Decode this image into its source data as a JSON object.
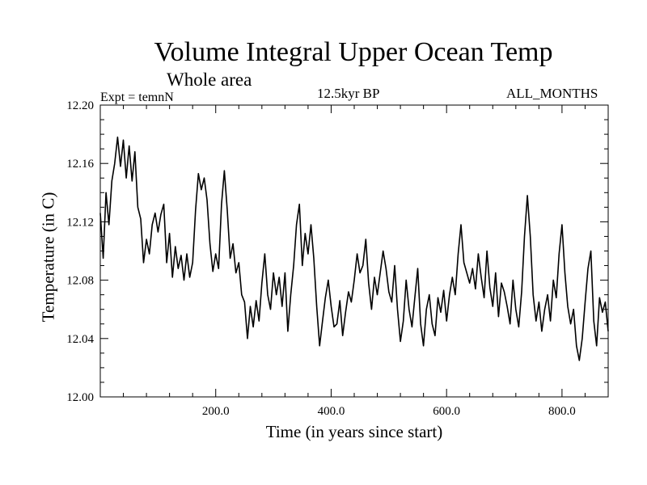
{
  "chart_data": {
    "type": "line",
    "title": "Volume Integral Upper Ocean Temp",
    "subtitle": "Whole area",
    "experiment": "Expt = temnN",
    "period": "12.5kyr BP",
    "months": "ALL_MONTHS",
    "xlabel": "Time (in years since start)",
    "ylabel": "Temperature (in C)",
    "xlim": [
      0,
      880
    ],
    "ylim": [
      12.0,
      12.2
    ],
    "xticks": [
      200,
      400,
      600,
      800
    ],
    "xtick_labels": [
      "200.0",
      "400.0",
      "600.0",
      "800.0"
    ],
    "yticks": [
      12.0,
      12.04,
      12.08,
      12.12,
      12.16,
      12.2
    ],
    "ytick_labels": [
      "12.00",
      "12.04",
      "12.08",
      "12.12",
      "12.16",
      "12.20"
    ],
    "grid": false,
    "series": [
      {
        "name": "Volume integral upper ocean temperature",
        "color": "#000000",
        "x": [
          0,
          5,
          10,
          15,
          20,
          25,
          30,
          35,
          40,
          45,
          50,
          55,
          60,
          65,
          70,
          75,
          80,
          85,
          90,
          95,
          100,
          105,
          110,
          115,
          120,
          125,
          130,
          135,
          140,
          145,
          150,
          155,
          160,
          165,
          170,
          175,
          180,
          185,
          190,
          195,
          200,
          205,
          210,
          215,
          220,
          225,
          230,
          235,
          240,
          245,
          250,
          255,
          260,
          265,
          270,
          275,
          280,
          285,
          290,
          295,
          300,
          305,
          310,
          315,
          320,
          325,
          330,
          335,
          340,
          345,
          350,
          355,
          360,
          365,
          370,
          375,
          380,
          385,
          390,
          395,
          400,
          405,
          410,
          415,
          420,
          425,
          430,
          435,
          440,
          445,
          450,
          455,
          460,
          465,
          470,
          475,
          480,
          485,
          490,
          495,
          500,
          505,
          510,
          515,
          520,
          525,
          530,
          535,
          540,
          545,
          550,
          555,
          560,
          565,
          570,
          575,
          580,
          585,
          590,
          595,
          600,
          605,
          610,
          615,
          620,
          625,
          630,
          635,
          640,
          645,
          650,
          655,
          660,
          665,
          670,
          675,
          680,
          685,
          690,
          695,
          700,
          705,
          710,
          715,
          720,
          725,
          730,
          735,
          740,
          745,
          750,
          755,
          760,
          765,
          770,
          775,
          780,
          785,
          790,
          795,
          800,
          805,
          810,
          815,
          820,
          825,
          830,
          835,
          840,
          845,
          850,
          855,
          860,
          865,
          870,
          875,
          880
        ],
        "values": [
          12.126,
          12.095,
          12.14,
          12.118,
          12.148,
          12.16,
          12.178,
          12.158,
          12.176,
          12.15,
          12.172,
          12.148,
          12.168,
          12.13,
          12.122,
          12.092,
          12.108,
          12.098,
          12.118,
          12.126,
          12.113,
          12.125,
          12.132,
          12.092,
          12.112,
          12.082,
          12.103,
          12.088,
          12.097,
          12.08,
          12.098,
          12.082,
          12.092,
          12.128,
          12.153,
          12.142,
          12.15,
          12.135,
          12.105,
          12.086,
          12.098,
          12.088,
          12.132,
          12.155,
          12.128,
          12.095,
          12.105,
          12.085,
          12.092,
          12.07,
          12.065,
          12.04,
          12.062,
          12.048,
          12.066,
          12.052,
          12.078,
          12.098,
          12.07,
          12.06,
          12.085,
          12.07,
          12.082,
          12.062,
          12.085,
          12.045,
          12.07,
          12.09,
          12.118,
          12.132,
          12.09,
          12.112,
          12.098,
          12.118,
          12.095,
          12.062,
          12.035,
          12.052,
          12.068,
          12.08,
          12.062,
          12.048,
          12.05,
          12.066,
          12.042,
          12.058,
          12.072,
          12.065,
          12.08,
          12.098,
          12.085,
          12.09,
          12.108,
          12.078,
          12.06,
          12.082,
          12.07,
          12.085,
          12.1,
          12.088,
          12.072,
          12.065,
          12.09,
          12.06,
          12.038,
          12.052,
          12.08,
          12.06,
          12.048,
          12.068,
          12.088,
          12.05,
          12.035,
          12.06,
          12.07,
          12.05,
          12.042,
          12.068,
          12.058,
          12.073,
          12.052,
          12.07,
          12.082,
          12.07,
          12.098,
          12.118,
          12.092,
          12.085,
          12.078,
          12.088,
          12.074,
          12.098,
          12.082,
          12.068,
          12.1,
          12.075,
          12.062,
          12.085,
          12.055,
          12.078,
          12.072,
          12.062,
          12.05,
          12.08,
          12.06,
          12.048,
          12.072,
          12.11,
          12.138,
          12.11,
          12.07,
          12.052,
          12.065,
          12.045,
          12.06,
          12.07,
          12.052,
          12.08,
          12.068,
          12.098,
          12.118,
          12.085,
          12.062,
          12.05,
          12.06,
          12.035,
          12.025,
          12.04,
          12.065,
          12.088,
          12.1,
          12.052,
          12.035,
          12.068,
          12.058,
          12.065,
          12.045
        ]
      }
    ]
  }
}
